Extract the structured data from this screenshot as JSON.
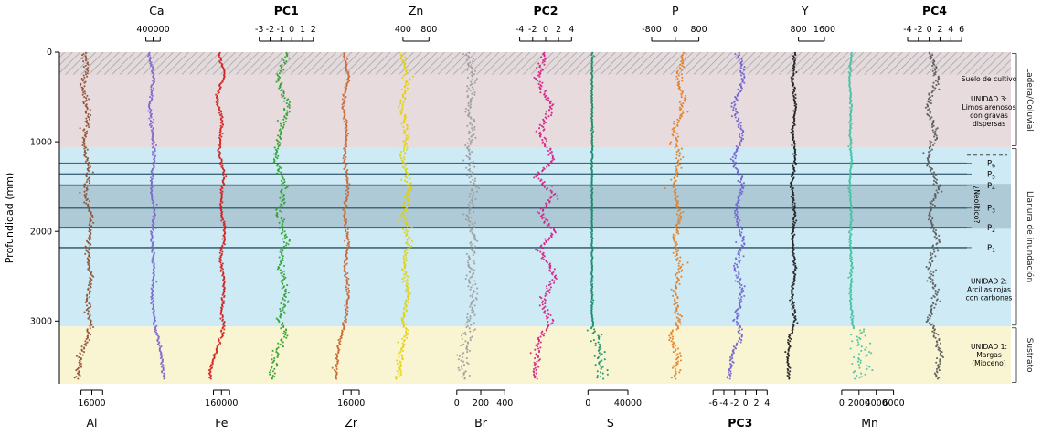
{
  "figure_title": "",
  "colors": {
    "phase_line": "#41687a",
    "axis": "#000000",
    "hatch_line": "#a79da2",
    "bracket": "#555555"
  },
  "chart_data": {
    "type": "scatter",
    "title": "",
    "ylabel": "Profundidad (mm)",
    "depth_axis": {
      "label": "Profundidad (mm)",
      "ticks": [
        0,
        1000,
        2000,
        3000
      ],
      "range": [
        0,
        3700
      ],
      "unit": "mm"
    },
    "panels": [
      {
        "element": "Al",
        "axis": "bottom",
        "bold": false,
        "color": "#8a4a2b",
        "xlim": [
          4000,
          28000
        ],
        "ticks": [
          16000
        ],
        "minor_ticks": [
          12000,
          20000
        ],
        "noise": 1200,
        "profile": [
          [
            0,
            13000
          ],
          [
            200,
            14200
          ],
          [
            400,
            12500
          ],
          [
            700,
            14800
          ],
          [
            1000,
            13000
          ],
          [
            1300,
            14800
          ],
          [
            1600,
            13600
          ],
          [
            1900,
            16000
          ],
          [
            2200,
            14200
          ],
          [
            2500,
            15500
          ],
          [
            2800,
            14400
          ],
          [
            3050,
            15800
          ],
          [
            3250,
            13500
          ],
          [
            3450,
            11500
          ],
          [
            3640,
            10500
          ]
        ]
      },
      {
        "element": "Ca",
        "axis": "top",
        "bold": false,
        "color": "#7a63cc",
        "xlim": [
          0,
          900000
        ],
        "ticks": [
          400000
        ],
        "minor_ticks": [
          300000,
          500000
        ],
        "noise": 26000,
        "profile": [
          [
            0,
            340000
          ],
          [
            300,
            410000
          ],
          [
            600,
            350000
          ],
          [
            900,
            390000
          ],
          [
            1200,
            420000
          ],
          [
            1500,
            370000
          ],
          [
            1800,
            420000
          ],
          [
            2100,
            380000
          ],
          [
            2400,
            420000
          ],
          [
            2700,
            385000
          ],
          [
            3000,
            420000
          ],
          [
            3150,
            450000
          ],
          [
            3350,
            510000
          ],
          [
            3640,
            545000
          ]
        ]
      },
      {
        "element": "Fe",
        "axis": "bottom",
        "bold": false,
        "color": "#cf1a1a",
        "xlim": [
          0,
          320000
        ],
        "ticks": [
          160000
        ],
        "minor_ticks": [
          120000,
          200000
        ],
        "noise": 9000,
        "profile": [
          [
            0,
            144000
          ],
          [
            250,
            172000
          ],
          [
            500,
            136000
          ],
          [
            800,
            164000
          ],
          [
            1100,
            146000
          ],
          [
            1400,
            174000
          ],
          [
            1700,
            154000
          ],
          [
            2000,
            177000
          ],
          [
            2300,
            154000
          ],
          [
            2600,
            174000
          ],
          [
            2900,
            160000
          ],
          [
            3050,
            174000
          ],
          [
            3250,
            146000
          ],
          [
            3450,
            116000
          ],
          [
            3640,
            100000
          ]
        ]
      },
      {
        "element": "PC1",
        "axis": "top",
        "bold": true,
        "color": "#2a9d2a",
        "xlim": [
          -3.5,
          2.5
        ],
        "ticks": [
          -3,
          -2,
          -1,
          0,
          1,
          2
        ],
        "noise": 0.4,
        "profile": [
          [
            0,
            -0.3
          ],
          [
            300,
            -1.3
          ],
          [
            600,
            -0.3
          ],
          [
            900,
            -1.0
          ],
          [
            1200,
            -1.6
          ],
          [
            1500,
            -0.6
          ],
          [
            1800,
            -1.2
          ],
          [
            2100,
            -0.5
          ],
          [
            2400,
            -1.1
          ],
          [
            2700,
            -0.5
          ],
          [
            3000,
            -1.1
          ],
          [
            3150,
            -0.5
          ],
          [
            3350,
            -1.5
          ],
          [
            3640,
            -1.8
          ]
        ]
      },
      {
        "element": "Zr",
        "axis": "bottom",
        "bold": false,
        "color": "#c8622d",
        "xlim": [
          0,
          32000
        ],
        "ticks": [
          16000
        ],
        "minor_ticks": [
          12000,
          20000
        ],
        "noise": 1100,
        "profile": [
          [
            0,
            12800
          ],
          [
            300,
            14600
          ],
          [
            600,
            11900
          ],
          [
            900,
            14100
          ],
          [
            1200,
            12500
          ],
          [
            1500,
            14600
          ],
          [
            1800,
            12500
          ],
          [
            2100,
            14600
          ],
          [
            2400,
            12800
          ],
          [
            2700,
            14600
          ],
          [
            3000,
            13000
          ],
          [
            3150,
            11400
          ],
          [
            3350,
            9300
          ],
          [
            3640,
            8300
          ]
        ]
      },
      {
        "element": "Zn",
        "axis": "top",
        "bold": false,
        "color": "#e0d000",
        "xlim": [
          100,
          1100
        ],
        "ticks": [
          400,
          800
        ],
        "noise": 55,
        "profile": [
          [
            0,
            380
          ],
          [
            300,
            470
          ],
          [
            600,
            360
          ],
          [
            900,
            470
          ],
          [
            1200,
            390
          ],
          [
            1500,
            500
          ],
          [
            1800,
            410
          ],
          [
            2100,
            500
          ],
          [
            2400,
            410
          ],
          [
            2700,
            480
          ],
          [
            3000,
            410
          ],
          [
            3150,
            470
          ],
          [
            3350,
            360
          ],
          [
            3640,
            320
          ]
        ]
      },
      {
        "element": "Br",
        "axis": "bottom",
        "bold": false,
        "color": "#9a9a9a",
        "xlim": [
          -70,
          470
        ],
        "ticks": [
          0,
          200,
          400
        ],
        "noise": 50,
        "deep_noise": 70,
        "deep_start": 3080,
        "profile": [
          [
            0,
            90
          ],
          [
            300,
            135
          ],
          [
            600,
            90
          ],
          [
            900,
            125
          ],
          [
            1200,
            90
          ],
          [
            1500,
            155
          ],
          [
            1800,
            100
          ],
          [
            2100,
            145
          ],
          [
            2400,
            100
          ],
          [
            2700,
            145
          ],
          [
            3000,
            115
          ],
          [
            3150,
            90
          ],
          [
            3350,
            65
          ],
          [
            3640,
            65
          ]
        ]
      },
      {
        "element": "PC2",
        "axis": "top",
        "bold": true,
        "color": "#d6177f",
        "xlim": [
          -5,
          5
        ],
        "ticks": [
          -4,
          -2,
          0,
          2,
          4
        ],
        "noise": 0.7,
        "profile": [
          [
            0,
            0
          ],
          [
            300,
            -1.4
          ],
          [
            600,
            1.0
          ],
          [
            900,
            -1.0
          ],
          [
            1200,
            1.2
          ],
          [
            1400,
            -1.5
          ],
          [
            1600,
            1.5
          ],
          [
            1800,
            -1.0
          ],
          [
            2000,
            1.5
          ],
          [
            2200,
            -1.0
          ],
          [
            2500,
            1.5
          ],
          [
            2800,
            -0.8
          ],
          [
            3000,
            1.0
          ],
          [
            3200,
            -1.0
          ],
          [
            3640,
            -1.8
          ]
        ]
      },
      {
        "element": "S",
        "axis": "bottom",
        "bold": false,
        "color": "#128a66",
        "xlim": [
          -10000,
          55000
        ],
        "ticks": [
          0,
          40000
        ],
        "noise": 900,
        "deep_noise": 7000,
        "deep_start": 3060,
        "profile": [
          [
            0,
            4000
          ],
          [
            2950,
            4000
          ],
          [
            3100,
            6000
          ],
          [
            3350,
            12000
          ],
          [
            3640,
            14000
          ]
        ]
      },
      {
        "element": "P",
        "axis": "top",
        "bold": false,
        "color": "#e07b1f",
        "xlim": [
          -1100,
          1100
        ],
        "ticks": [
          -800,
          0,
          800
        ],
        "noise": 150,
        "profile": [
          [
            0,
            300
          ],
          [
            300,
            120
          ],
          [
            600,
            250
          ],
          [
            900,
            -30
          ],
          [
            1200,
            170
          ],
          [
            1500,
            -80
          ],
          [
            1800,
            170
          ],
          [
            2100,
            -30
          ],
          [
            2400,
            170
          ],
          [
            2700,
            -30
          ],
          [
            3000,
            140
          ],
          [
            3200,
            -180
          ],
          [
            3400,
            140
          ],
          [
            3640,
            -30
          ]
        ]
      },
      {
        "element": "PC3",
        "axis": "bottom",
        "bold": true,
        "color": "#6a5bcd",
        "xlim": [
          -7,
          5
        ],
        "ticks": [
          -6,
          -4,
          -2,
          0,
          2,
          4
        ],
        "noise": 0.6,
        "profile": [
          [
            0,
            -1.5
          ],
          [
            300,
            -0.3
          ],
          [
            600,
            -2.2
          ],
          [
            900,
            -0.6
          ],
          [
            1200,
            -2.2
          ],
          [
            1500,
            -0.5
          ],
          [
            1800,
            -1.8
          ],
          [
            2100,
            -0.5
          ],
          [
            2400,
            -1.8
          ],
          [
            2700,
            -0.6
          ],
          [
            3000,
            -1.8
          ],
          [
            3150,
            -0.6
          ],
          [
            3350,
            -2.4
          ],
          [
            3640,
            -3.0
          ]
        ]
      },
      {
        "element": "Y",
        "axis": "top",
        "bold": false,
        "color": "#1a1a1a",
        "xlim": [
          0,
          2000
        ],
        "ticks": [
          800,
          1600
        ],
        "noise": 60,
        "profile": [
          [
            0,
            700
          ],
          [
            300,
            610
          ],
          [
            600,
            710
          ],
          [
            900,
            610
          ],
          [
            1200,
            700
          ],
          [
            1500,
            580
          ],
          [
            1800,
            700
          ],
          [
            2100,
            610
          ],
          [
            2400,
            700
          ],
          [
            2700,
            610
          ],
          [
            3000,
            680
          ],
          [
            3150,
            560
          ],
          [
            3350,
            470
          ],
          [
            3640,
            500
          ]
        ]
      },
      {
        "element": "Mn",
        "axis": "bottom",
        "bold": false,
        "color": "#3fc1a0",
        "xlim": [
          -500,
          7000
        ],
        "ticks": [
          0,
          2000,
          4000,
          6000
        ],
        "noise": 160,
        "deep_noise": 1500,
        "deep_start": 3080,
        "profile": [
          [
            0,
            1100
          ],
          [
            300,
            900
          ],
          [
            600,
            1100
          ],
          [
            900,
            950
          ],
          [
            1200,
            1150
          ],
          [
            1500,
            900
          ],
          [
            1800,
            1150
          ],
          [
            2100,
            950
          ],
          [
            2400,
            1150
          ],
          [
            2700,
            1000
          ],
          [
            3000,
            1200
          ],
          [
            3100,
            1500
          ],
          [
            3350,
            2400
          ],
          [
            3640,
            2000
          ]
        ]
      },
      {
        "element": "PC4",
        "axis": "top",
        "bold": true,
        "color": "#555555",
        "xlim": [
          -5,
          7
        ],
        "ticks": [
          -4,
          -2,
          0,
          2,
          4,
          6
        ],
        "noise": 0.7,
        "profile": [
          [
            0,
            0.2
          ],
          [
            300,
            1.4
          ],
          [
            600,
            -0.3
          ],
          [
            900,
            1.2
          ],
          [
            1200,
            -0.4
          ],
          [
            1500,
            1.6
          ],
          [
            1800,
            0.0
          ],
          [
            2100,
            1.6
          ],
          [
            2400,
            0.0
          ],
          [
            2700,
            1.3
          ],
          [
            3000,
            0.0
          ],
          [
            3150,
            1.2
          ],
          [
            3350,
            2.2
          ],
          [
            3640,
            1.2
          ]
        ]
      }
    ],
    "zones": [
      {
        "name": "suelo-de-cultivo",
        "from": 0,
        "to": 250,
        "fill": "#e3dadc",
        "hatched": true,
        "label": "Suelo de cultivo"
      },
      {
        "name": "unidad-3",
        "from": 250,
        "to": 1060,
        "fill": "#e7dbde",
        "hatched": false,
        "label": "UNIDAD 3: Limos arenosos con gravas dispersas"
      },
      {
        "name": "llanura-de-inundacion",
        "from": 1060,
        "to": 3060,
        "fill": "#cdeaf5",
        "hatched": false,
        "label": "UNIDAD 2: Arcillas rojas con carbones"
      },
      {
        "name": "banda-neolitico",
        "from": 1470,
        "to": 1970,
        "fill": "#aecad7",
        "hatched": false,
        "label": "¿Neolítico?"
      },
      {
        "name": "sustrato",
        "from": 3060,
        "to": 3700,
        "fill": "#f9f4d1",
        "hatched": false,
        "label": "UNIDAD 1: Margas (Mioceno)"
      }
    ],
    "phase_lines": [
      {
        "label": "P",
        "sub": "6",
        "depth": 1240
      },
      {
        "label": "P",
        "sub": "5",
        "depth": 1360
      },
      {
        "label": "P",
        "sub": "4",
        "depth": 1490
      },
      {
        "label": "P",
        "sub": "3",
        "depth": 1740
      },
      {
        "label": "P",
        "sub": "2",
        "depth": 1955
      },
      {
        "label": "P",
        "sub": "1",
        "depth": 2180
      }
    ],
    "boundary_dash": {
      "depth": 1150
    },
    "right_column": {
      "suelo_label": {
        "lines": [
          "Suelo de cultivo"
        ],
        "depth": 300
      },
      "unidad3_label": {
        "lines": [
          "UNIDAD 3:",
          "Limos arenosos",
          "con gravas",
          "dispersas"
        ],
        "depth": 660
      },
      "neolitico_label": {
        "text": "¿Neolítico?",
        "depth": 1700
      },
      "unidad2_label": {
        "lines": [
          "UNIDAD 2:",
          "Arcillas rojas",
          "con carbones"
        ],
        "depth": 2650
      },
      "unidad1_label": {
        "lines": [
          "UNIDAD 1:",
          "Margas",
          "(Mioceno)"
        ],
        "depth": 3380
      }
    },
    "side_labels": [
      {
        "text": "Ladera/Coluvial",
        "from": 0,
        "to": 1060
      },
      {
        "text": "Llanura de inundación",
        "from": 1060,
        "to": 3060
      },
      {
        "text": "Sustrato",
        "from": 3060,
        "to": 3700
      }
    ]
  }
}
